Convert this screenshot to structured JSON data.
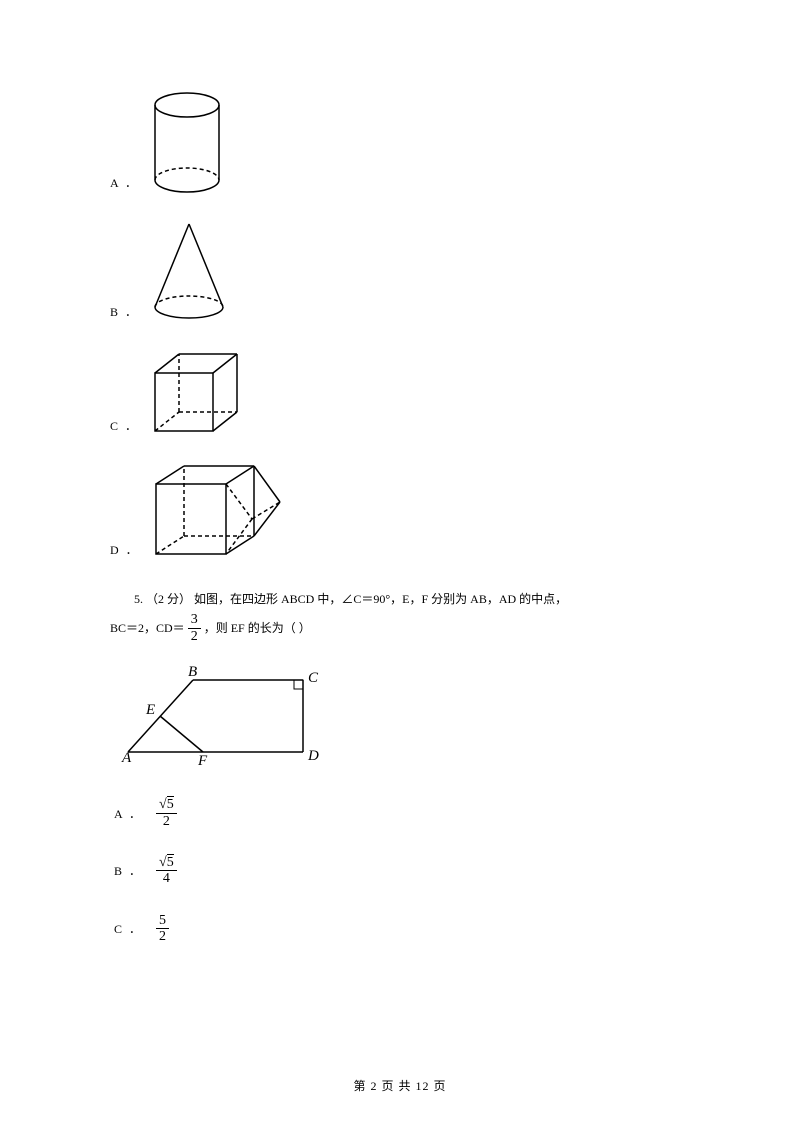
{
  "options4": {
    "a": "A ．",
    "b": "B ．",
    "c": "C ．",
    "d": "D ．"
  },
  "q5": {
    "line1_prefix": "5.   （2 分）   如图，在四边形 ABCD 中，∠C＝90°，E，F 分别为 AB，AD 的中点，",
    "line2_prefix": "BC＝2，CD＝ ",
    "line2_suffix": " ，则 EF 的长为（    ）",
    "cd_num": "3",
    "cd_den": "2"
  },
  "q5opts": {
    "a_lbl": "A ．",
    "a_num": "√5",
    "a_den": "2",
    "b_lbl": "B ．",
    "b_num": "√5",
    "b_den": "4",
    "c_lbl": "C ．",
    "c_num": "5",
    "c_den": "2"
  },
  "diagram_labels": {
    "A": "A",
    "B": "B",
    "C": "C",
    "D": "D",
    "E": "E",
    "F": "F"
  },
  "footer": "第 2 页 共 12 页",
  "style": {
    "stroke": "#000000",
    "stroke_width": 1.5,
    "dash": "4,3",
    "font": "italic 14px 'Times New Roman', serif"
  }
}
